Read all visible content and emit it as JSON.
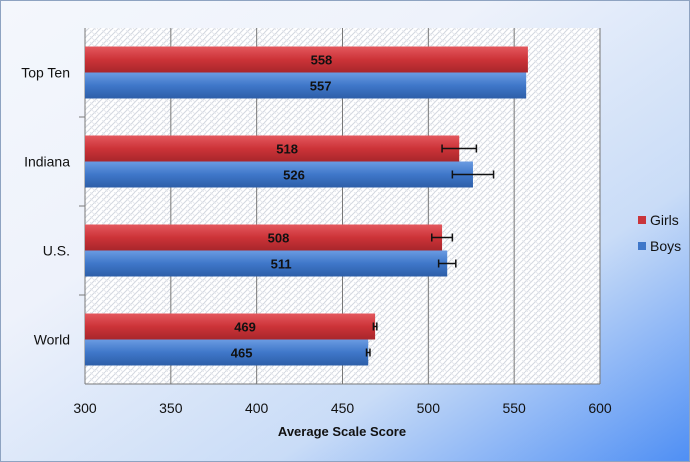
{
  "chart_data": {
    "type": "bar",
    "orientation": "horizontal",
    "categories": [
      "Top Ten",
      "Indiana",
      "U.S.",
      "World"
    ],
    "series": [
      {
        "name": "Girls",
        "values": [
          558,
          518,
          508,
          469
        ],
        "error": [
          null,
          10,
          6,
          1
        ],
        "color": "#c9353b"
      },
      {
        "name": "Boys",
        "values": [
          557,
          526,
          511,
          465
        ],
        "error": [
          null,
          12,
          5,
          1
        ],
        "color": "#3f77c9"
      }
    ],
    "xlabel": "Average Scale Score",
    "xlim": [
      300,
      600
    ],
    "xticks": [
      "300",
      "350",
      "400",
      "450",
      "500",
      "550",
      "600"
    ],
    "grid": true,
    "legend_placement": "right"
  }
}
